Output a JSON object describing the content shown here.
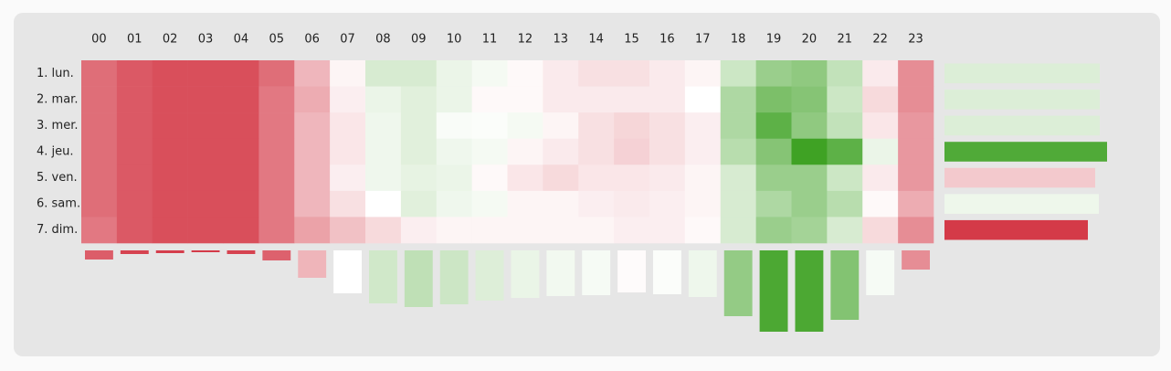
{
  "chart_data": {
    "type": "heatmap",
    "x": [
      "00",
      "01",
      "02",
      "03",
      "04",
      "05",
      "06",
      "07",
      "08",
      "09",
      "10",
      "11",
      "12",
      "13",
      "14",
      "15",
      "16",
      "17",
      "18",
      "19",
      "20",
      "21",
      "22",
      "23"
    ],
    "y": [
      "1. lun.",
      "2. mar.",
      "3. mer.",
      "4. jeu.",
      "5. ven.",
      "6. sam.",
      "7. dim."
    ],
    "values": [
      [
        -70,
        -80,
        -85,
        -85,
        -85,
        -70,
        -35,
        -5,
        20,
        20,
        10,
        5,
        -3,
        -10,
        -15,
        -15,
        -10,
        -5,
        25,
        50,
        55,
        30,
        -10,
        -55
      ],
      [
        -70,
        -80,
        -85,
        -85,
        -85,
        -65,
        -40,
        -8,
        10,
        15,
        10,
        -3,
        -3,
        -10,
        -10,
        -10,
        -10,
        0,
        40,
        65,
        60,
        25,
        -18,
        -55
      ],
      [
        -70,
        -80,
        -85,
        -85,
        -85,
        -65,
        -35,
        -12,
        8,
        15,
        3,
        2,
        5,
        -5,
        -15,
        -20,
        -15,
        -8,
        40,
        80,
        55,
        30,
        -12,
        -50
      ],
      [
        -70,
        -80,
        -85,
        -85,
        -85,
        -65,
        -35,
        -12,
        8,
        15,
        8,
        5,
        -5,
        -10,
        -15,
        -22,
        -15,
        -8,
        35,
        60,
        95,
        80,
        10,
        -50
      ],
      [
        -70,
        -80,
        -85,
        -85,
        -85,
        -65,
        -35,
        -8,
        8,
        12,
        10,
        -3,
        -12,
        -18,
        -12,
        -12,
        -10,
        -5,
        20,
        50,
        50,
        25,
        -10,
        -50
      ],
      [
        -70,
        -80,
        -85,
        -85,
        -85,
        -65,
        -35,
        -15,
        0,
        15,
        8,
        5,
        -5,
        -5,
        -8,
        -10,
        -8,
        -5,
        20,
        40,
        50,
        35,
        -3,
        -40
      ],
      [
        -65,
        -80,
        -85,
        -85,
        -85,
        -65,
        -45,
        -30,
        -18,
        -8,
        -5,
        -5,
        -5,
        -5,
        -5,
        -8,
        -8,
        -3,
        20,
        50,
        45,
        20,
        -18,
        -55
      ]
    ],
    "column_values": [
      -37,
      -43,
      -44,
      -45,
      -43,
      -36,
      -17,
      0,
      11,
      15,
      12,
      8,
      5,
      3,
      2,
      -1,
      1,
      4,
      25,
      42,
      42,
      29,
      2,
      -26
    ],
    "row_values": [
      2,
      2,
      2,
      10,
      -3,
      1,
      -11
    ],
    "negative_color": "#d43a48",
    "positive_color": "#3fa224"
  }
}
